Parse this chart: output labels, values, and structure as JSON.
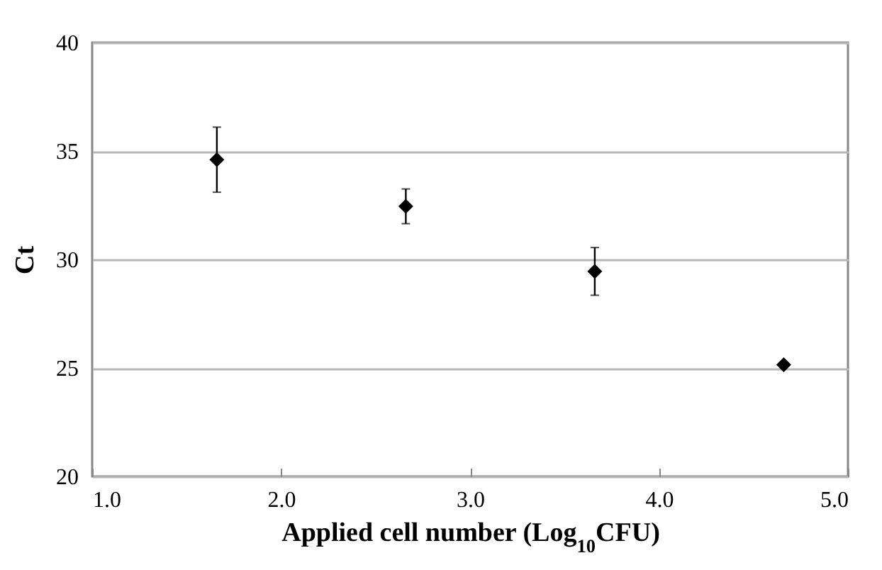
{
  "chart_data": {
    "type": "scatter",
    "xlabel": "Applied cell number (Log$_{10}$CFU)",
    "ylabel": "Ct",
    "x": [
      1.66,
      2.66,
      3.66,
      4.66
    ],
    "series": [
      {
        "color": "#000000",
        "values": [
          34.6,
          32.45,
          29.45,
          25.15
        ],
        "errors": [
          1.5,
          0.8,
          1.1,
          null
        ]
      }
    ],
    "xlim": [
      1.0,
      5.0
    ],
    "xticks": [
      {
        "value": 1,
        "label": "1.0"
      },
      {
        "value": 2,
        "label": "2.0"
      },
      {
        "value": 3,
        "label": "3.0"
      },
      {
        "value": 4,
        "label": "4.0"
      },
      {
        "value": 5,
        "label": "5.0"
      }
    ],
    "ylim": [
      20,
      40
    ],
    "yticks": [
      20,
      25,
      30,
      35,
      40
    ],
    "grid": "y",
    "marker": "diamond"
  }
}
